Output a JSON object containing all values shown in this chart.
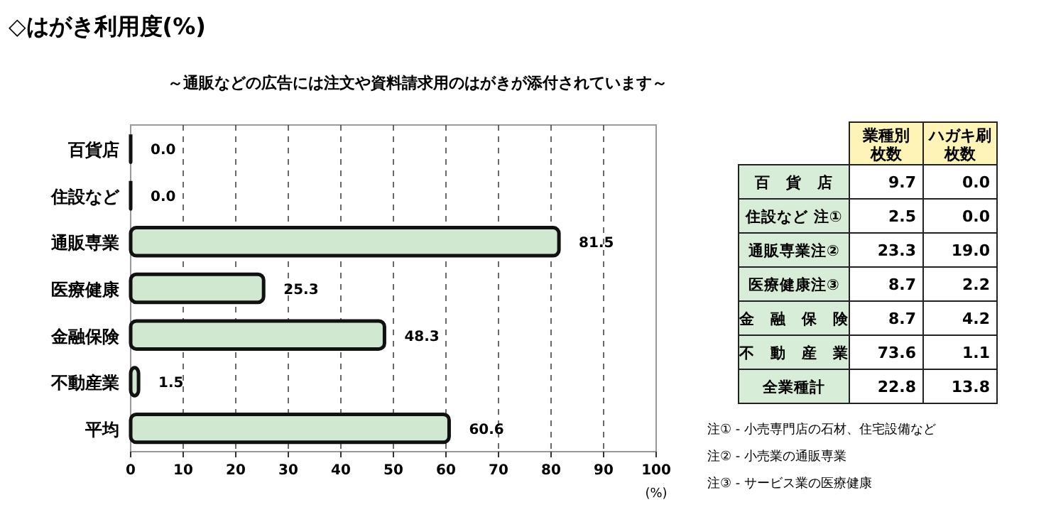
{
  "chart_data": [
    {
      "type": "bar",
      "orientation": "horizontal",
      "title": "◇はがき利用度(%)",
      "subtitle": "～通販などの広告には注文や資料請求用のはがきが添付されています～",
      "xlabel": "(%)",
      "categories": [
        "百貨店",
        "住設など",
        "通販専業",
        "医療健康",
        "金融保険",
        "不動産業",
        "平均"
      ],
      "values": [
        0.0,
        0.0,
        81.5,
        25.3,
        48.3,
        1.5,
        60.6
      ],
      "value_labels": [
        "0.0",
        "0.0",
        "81.5",
        "25.3",
        "48.3",
        "1.5",
        "60.6"
      ],
      "color": "#cfe8cf",
      "xlim": [
        0,
        100
      ],
      "xticks": [
        0,
        10,
        20,
        30,
        40,
        50,
        60,
        70,
        80,
        90,
        100
      ],
      "grid": "x",
      "data_labels": true
    },
    {
      "type": "other",
      "categories": [
        "百　貨　店",
        "住設など 注①",
        "通販専業注②",
        "医療健康注③",
        "金　融　保　険",
        "不　動　産　業",
        "全業種計"
      ],
      "series": [
        {
          "name": "業種別枚数",
          "values": [
            9.7,
            2.5,
            23.3,
            8.7,
            8.7,
            73.6,
            22.8
          ]
        },
        {
          "name": "ハガキ刷枚数",
          "values": [
            0.0,
            0.0,
            19.0,
            2.2,
            4.2,
            1.1,
            13.8
          ],
          "value_labels": [
            "0.0",
            "0.0",
            "19.0",
            "2.2",
            "4.2",
            "1.1",
            "13.8"
          ]
        }
      ],
      "data_labels": true,
      "annotations": [
        "注① - 小売専門店の石材、住宅設備など",
        "注② - 小売業の通販専業",
        "注③ - サービス業の医療健康"
      ]
    }
  ]
}
